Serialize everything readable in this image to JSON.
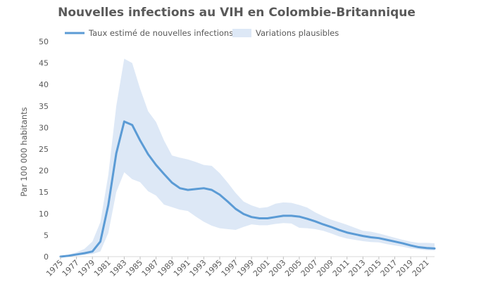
{
  "chart_data": {
    "type": "area",
    "title": "Nouvelles infections au VIH en Colombie-Britannique",
    "xlabel": "",
    "ylabel": "Par 100 000 habitants",
    "ylim": [
      0,
      50
    ],
    "yticks": [
      0,
      5,
      10,
      15,
      20,
      25,
      30,
      35,
      40,
      45,
      50
    ],
    "xlim": [
      1975,
      2022
    ],
    "xticks": [
      1975,
      1977,
      1979,
      1981,
      1983,
      1985,
      1987,
      1989,
      1991,
      1993,
      1995,
      1997,
      1999,
      2001,
      2003,
      2005,
      2007,
      2009,
      2011,
      2013,
      2015,
      2017,
      2019,
      2021
    ],
    "grid": false,
    "legend_position": "top",
    "colors": {
      "line": "#5b9bd5",
      "band": "#dde8f6"
    },
    "x": [
      1975,
      1976,
      1977,
      1978,
      1979,
      1980,
      1981,
      1982,
      1983,
      1984,
      1985,
      1986,
      1987,
      1988,
      1989,
      1990,
      1991,
      1992,
      1993,
      1994,
      1995,
      1996,
      1997,
      1998,
      1999,
      2000,
      2001,
      2002,
      2003,
      2004,
      2005,
      2006,
      2007,
      2008,
      2009,
      2010,
      2011,
      2012,
      2013,
      2014,
      2015,
      2016,
      2017,
      2018,
      2019,
      2020,
      2021,
      2022
    ],
    "series": [
      {
        "name": "Taux estimé de nouvelles infections",
        "kind": "line",
        "values": [
          0,
          0.2,
          0.5,
          0.8,
          1.2,
          3.5,
          12,
          24,
          31.4,
          30.6,
          27,
          23.8,
          21.3,
          19.2,
          17.2,
          15.9,
          15.5,
          15.7,
          15.9,
          15.5,
          14.4,
          12.8,
          11.1,
          9.9,
          9.2,
          8.9,
          8.9,
          9.2,
          9.5,
          9.5,
          9.3,
          8.8,
          8.2,
          7.5,
          6.9,
          6.2,
          5.6,
          5.2,
          4.8,
          4.5,
          4.3,
          3.9,
          3.5,
          3.1,
          2.6,
          2.2,
          2.0,
          1.9
        ]
      },
      {
        "name": "Variations plausibles",
        "kind": "band",
        "lower": [
          0,
          0.1,
          0.2,
          0.4,
          0.6,
          1.2,
          5.5,
          15,
          19.6,
          18,
          17.3,
          15.2,
          14.2,
          12.1,
          11.5,
          10.9,
          10.6,
          9.3,
          8.1,
          7.2,
          6.6,
          6.4,
          6.2,
          6.9,
          7.5,
          7.3,
          7.3,
          7.6,
          7.8,
          7.7,
          6.7,
          6.6,
          6.4,
          6.0,
          5.4,
          4.7,
          4.2,
          3.9,
          3.6,
          3.4,
          3.3,
          2.9,
          2.6,
          2.3,
          1.9,
          1.7,
          1.5,
          1.4
        ],
        "upper": [
          0,
          0.4,
          1.0,
          1.8,
          3.5,
          8,
          19,
          35,
          46,
          45,
          39,
          33.8,
          31.3,
          27,
          23.5,
          23,
          22.6,
          22,
          21.3,
          21.1,
          19.4,
          17.2,
          14.8,
          12.8,
          11.9,
          11.3,
          11.5,
          12.3,
          12.6,
          12.5,
          12.0,
          11.4,
          10.3,
          9.4,
          8.6,
          8.0,
          7.4,
          6.7,
          6.0,
          5.8,
          5.4,
          4.9,
          4.4,
          3.9,
          3.5,
          3.2,
          3.2,
          3.1
        ]
      }
    ]
  }
}
